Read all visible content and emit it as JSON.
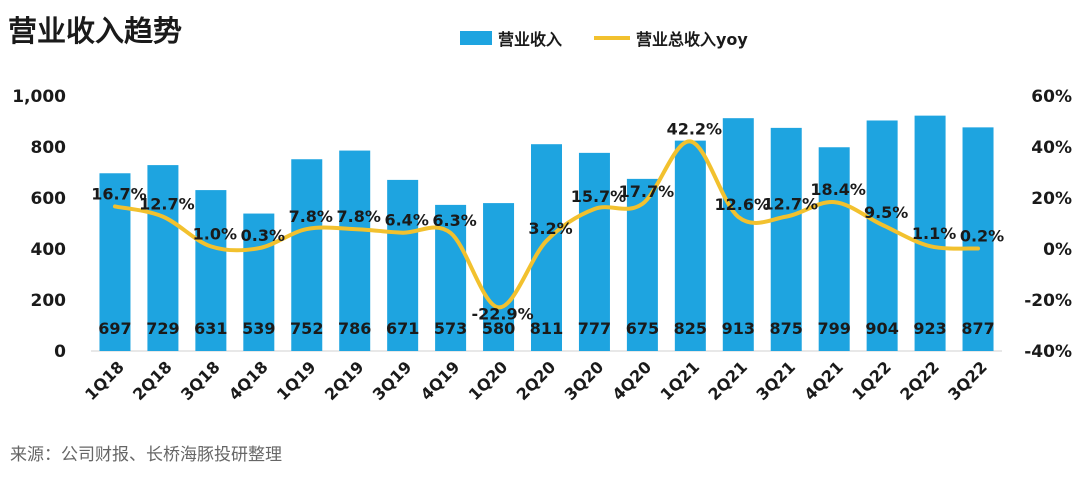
{
  "title": "营业收入趋势",
  "source": "来源：公司财报、长桥海豚投研整理",
  "chart_data": {
    "type": "bar",
    "title": "营业收入趋势",
    "categories": [
      "1Q18",
      "2Q18",
      "3Q18",
      "4Q18",
      "1Q19",
      "2Q19",
      "3Q19",
      "4Q19",
      "1Q20",
      "2Q20",
      "3Q20",
      "4Q20",
      "1Q21",
      "2Q21",
      "3Q21",
      "4Q21",
      "1Q22",
      "2Q22",
      "3Q22"
    ],
    "series": [
      {
        "name": "营业收入",
        "type": "bar",
        "axis": "left",
        "color": "#1ea4e0",
        "values": [
          697,
          729,
          631,
          539,
          752,
          786,
          671,
          573,
          580,
          811,
          777,
          675,
          825,
          913,
          875,
          799,
          904,
          923,
          877
        ],
        "labels": [
          "697",
          "729",
          "631",
          "539",
          "752",
          "786",
          "671",
          "573",
          "580",
          "811",
          "777",
          "675",
          "825",
          "913",
          "875",
          "799",
          "904",
          "923",
          "877"
        ]
      },
      {
        "name": "营业总收入yoy",
        "type": "line",
        "axis": "right",
        "color": "#f2c12e",
        "values": [
          16.7,
          12.7,
          1.0,
          0.3,
          7.8,
          7.8,
          6.4,
          6.3,
          -22.9,
          3.2,
          15.7,
          17.7,
          42.2,
          12.6,
          12.7,
          18.4,
          9.5,
          1.1,
          0.2
        ],
        "labels": [
          "16.7%",
          "12.7%",
          "1.0%",
          "0.3%",
          "7.8%",
          "7.8%",
          "6.4%",
          "6.3%",
          "-22.9%",
          "3.2%",
          "15.7%",
          "17.7%",
          "42.2%",
          "12.6%",
          "12.7%",
          "18.4%",
          "9.5%",
          "1.1%",
          "0.2%"
        ]
      }
    ],
    "y_left": {
      "min": 0,
      "max": 1000,
      "ticks": [
        0,
        200,
        400,
        600,
        800,
        1000
      ],
      "tick_labels": [
        "0",
        "200",
        "400",
        "600",
        "800",
        "1,000"
      ]
    },
    "y_right": {
      "min": -40,
      "max": 60,
      "ticks": [
        -40,
        -20,
        0,
        20,
        40,
        60
      ],
      "tick_labels": [
        "-40%",
        "-20%",
        "0%",
        "20%",
        "40%",
        "60%"
      ]
    },
    "grid": false,
    "legend_position": "top-center"
  }
}
